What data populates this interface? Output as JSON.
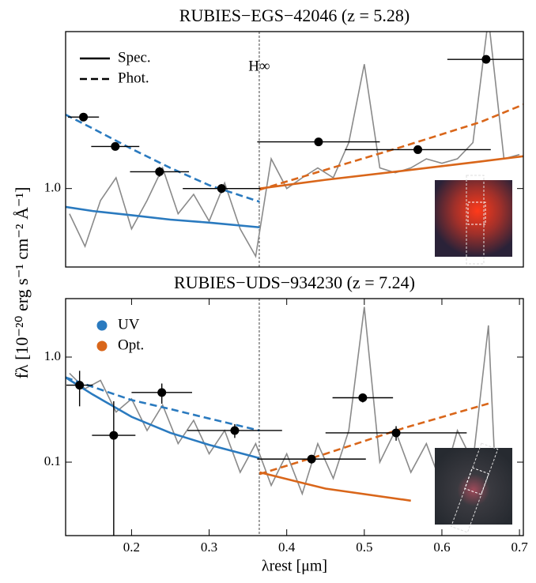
{
  "ylabel": "fλ [10⁻²⁰ erg s⁻¹ cm⁻² Å⁻¹]",
  "chart_data": [
    {
      "type": "line",
      "title": "RUBIES−EGS−42046 (z = 5.28)",
      "log_y": true,
      "xlim": [
        0.115,
        0.705
      ],
      "ylim": [
        0.5,
        4
      ],
      "yticks": [
        {
          "value": 1,
          "label": "1.0"
        }
      ],
      "break_x": 0.3646,
      "annotation": "H∞",
      "legend": [
        {
          "label": "Spec.",
          "style": "solid"
        },
        {
          "label": "Phot.",
          "style": "dashed"
        }
      ],
      "series": [
        {
          "kind": "spectrum",
          "color": "#8a8a8a",
          "x": [
            0.12,
            0.14,
            0.16,
            0.18,
            0.2,
            0.22,
            0.24,
            0.26,
            0.28,
            0.3,
            0.32,
            0.34,
            0.36,
            0.38,
            0.4,
            0.42,
            0.44,
            0.46,
            0.48,
            0.5,
            0.52,
            0.54,
            0.56,
            0.58,
            0.6,
            0.62,
            0.64,
            0.66,
            0.68,
            0.7
          ],
          "values": [
            0.8,
            0.6,
            0.9,
            1.1,
            0.7,
            0.9,
            1.2,
            0.8,
            0.95,
            0.75,
            1.05,
            0.7,
            0.55,
            1.3,
            1.0,
            1.1,
            1.2,
            1.1,
            1.5,
            3.0,
            1.2,
            1.15,
            1.2,
            1.3,
            1.25,
            1.3,
            1.5,
            4.5,
            1.3,
            1.35
          ]
        },
        {
          "kind": "model",
          "color": "#2a7abf",
          "style": "dashed",
          "x": [
            0.115,
            0.15,
            0.2,
            0.25,
            0.3,
            0.365
          ],
          "values": [
            1.92,
            1.7,
            1.42,
            1.2,
            1.03,
            0.89
          ]
        },
        {
          "kind": "model",
          "color": "#2a7abf",
          "style": "solid",
          "x": [
            0.115,
            0.15,
            0.2,
            0.25,
            0.3,
            0.365
          ],
          "values": [
            0.85,
            0.82,
            0.79,
            0.76,
            0.74,
            0.71
          ]
        },
        {
          "kind": "model",
          "color": "#d9661a",
          "style": "dashed",
          "x": [
            0.365,
            0.45,
            0.55,
            0.65,
            0.705
          ],
          "values": [
            0.99,
            1.18,
            1.45,
            1.8,
            2.1
          ]
        },
        {
          "kind": "model",
          "color": "#d9661a",
          "style": "solid",
          "x": [
            0.365,
            0.45,
            0.55,
            0.65,
            0.705
          ],
          "values": [
            1.0,
            1.08,
            1.17,
            1.27,
            1.33
          ]
        },
        {
          "kind": "points",
          "color": "#000000",
          "x": [
            0.138,
            0.179,
            0.236,
            0.316,
            0.441,
            0.569,
            0.657
          ],
          "xerr": [
            0.02,
            0.031,
            0.038,
            0.05,
            0.079,
            0.094,
            0.05
          ],
          "values": [
            1.88,
            1.45,
            1.16,
            1.0,
            1.51,
            1.41,
            3.13
          ],
          "yerr": [
            0.05,
            0.05,
            0.05,
            0.04,
            0.05,
            0.05,
            0.1
          ]
        }
      ]
    },
    {
      "type": "line",
      "title": "RUBIES−UDS−934230 (z = 7.24)",
      "log_y": true,
      "xlim": [
        0.115,
        0.705
      ],
      "ylim": [
        0.02,
        3.6
      ],
      "yticks": [
        0.1,
        {
          "value": 1,
          "label": "1.0"
        }
      ],
      "xticks": [
        0.2,
        0.3,
        0.4,
        0.5,
        0.6,
        0.7
      ],
      "xlabel": "λrest [μm]",
      "break_x": 0.3646,
      "legend": [
        {
          "label": "UV",
          "color": "#2a7abf"
        },
        {
          "label": "Opt.",
          "color": "#d9661a"
        }
      ],
      "series": [
        {
          "kind": "spectrum",
          "color": "#8a8a8a",
          "x": [
            0.12,
            0.14,
            0.16,
            0.18,
            0.2,
            0.22,
            0.24,
            0.26,
            0.28,
            0.3,
            0.32,
            0.34,
            0.36,
            0.38,
            0.4,
            0.42,
            0.44,
            0.46,
            0.48,
            0.5,
            0.52,
            0.54,
            0.56,
            0.58,
            0.6,
            0.62,
            0.64,
            0.66,
            0.67
          ],
          "values": [
            0.7,
            0.5,
            0.6,
            0.3,
            0.4,
            0.2,
            0.35,
            0.15,
            0.25,
            0.12,
            0.2,
            0.08,
            0.15,
            0.06,
            0.12,
            0.05,
            0.15,
            0.07,
            0.2,
            3.0,
            0.1,
            0.2,
            0.08,
            0.15,
            0.06,
            0.2,
            0.1,
            2.0,
            0.05
          ]
        },
        {
          "kind": "model",
          "color": "#2a7abf",
          "style": "dashed",
          "x": [
            0.115,
            0.15,
            0.2,
            0.25,
            0.3,
            0.365
          ],
          "values": [
            0.64,
            0.52,
            0.39,
            0.32,
            0.26,
            0.2
          ]
        },
        {
          "kind": "model",
          "color": "#2a7abf",
          "style": "solid",
          "x": [
            0.115,
            0.15,
            0.2,
            0.25,
            0.3,
            0.365
          ],
          "values": [
            0.64,
            0.44,
            0.27,
            0.19,
            0.146,
            0.109
          ]
        },
        {
          "kind": "model",
          "color": "#d9661a",
          "style": "dashed",
          "x": [
            0.365,
            0.45,
            0.55,
            0.665
          ],
          "values": [
            0.077,
            0.12,
            0.21,
            0.37
          ]
        },
        {
          "kind": "model",
          "color": "#d9661a",
          "style": "solid",
          "x": [
            0.365,
            0.45,
            0.56
          ],
          "values": [
            0.08,
            0.056,
            0.043
          ]
        },
        {
          "kind": "points",
          "color": "#000000",
          "x": [
            0.133,
            0.177,
            0.239,
            0.333,
            0.432,
            0.498,
            0.541
          ],
          "xerr": [
            0.017,
            0.028,
            0.039,
            0.061,
            0.07,
            0.039,
            0.091
          ],
          "values": [
            0.54,
            0.18,
            0.46,
            0.2,
            0.107,
            0.41,
            0.19
          ],
          "yerr": [
            0.2,
            0.2,
            0.1,
            0.03,
            0.01,
            0.04,
            0.03
          ]
        }
      ]
    }
  ]
}
